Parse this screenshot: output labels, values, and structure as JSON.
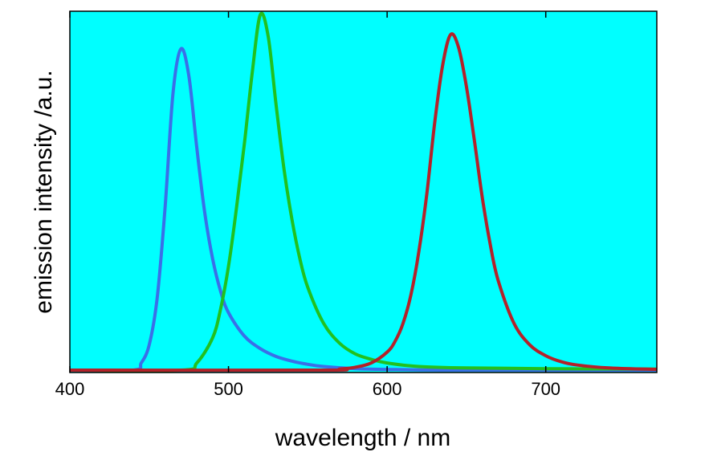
{
  "chart_data": {
    "type": "line",
    "xlabel": "wavelength / nm",
    "ylabel": "emission intensity /a.u.",
    "xlim": [
      400,
      770
    ],
    "ylim": [
      0,
      1.0
    ],
    "x_ticks": [
      400,
      500,
      600,
      700
    ],
    "x_tick_labels": [
      "400",
      "500",
      "600",
      "700"
    ],
    "background_color": "#00FFFF",
    "grid": false,
    "series": [
      {
        "color": "#3A6FE8",
        "x": [
          400,
          440,
          445,
          450,
          455,
          460,
          465,
          470,
          475,
          480,
          485,
          490,
          495,
          500,
          510,
          520,
          530,
          540,
          550,
          560,
          580,
          600,
          640,
          700,
          770
        ],
        "y": [
          0.0,
          0.0,
          0.02,
          0.07,
          0.2,
          0.45,
          0.77,
          0.895,
          0.82,
          0.62,
          0.44,
          0.31,
          0.22,
          0.16,
          0.095,
          0.06,
          0.038,
          0.025,
          0.016,
          0.01,
          0.004,
          0.002,
          0.0,
          0.0,
          0.0
        ]
      },
      {
        "color": "#22C01F",
        "x": [
          400,
          470,
          480,
          490,
          495,
          500,
          505,
          510,
          515,
          520,
          525,
          530,
          535,
          540,
          545,
          550,
          560,
          570,
          580,
          590,
          600,
          620,
          650,
          700,
          770
        ],
        "y": [
          0.0,
          0.0,
          0.02,
          0.09,
          0.17,
          0.29,
          0.45,
          0.63,
          0.83,
          0.99,
          0.93,
          0.74,
          0.56,
          0.42,
          0.31,
          0.23,
          0.13,
          0.075,
          0.045,
          0.03,
          0.02,
          0.01,
          0.006,
          0.004,
          0.003
        ]
      },
      {
        "color": "#B3222A",
        "x": [
          400,
          560,
          570,
          580,
          590,
          600,
          605,
          610,
          615,
          620,
          625,
          630,
          635,
          640,
          645,
          650,
          655,
          660,
          665,
          670,
          680,
          690,
          700,
          710,
          720,
          740,
          770
        ],
        "y": [
          0.0,
          0.0,
          0.003,
          0.008,
          0.02,
          0.05,
          0.08,
          0.13,
          0.21,
          0.33,
          0.49,
          0.69,
          0.85,
          0.935,
          0.9,
          0.79,
          0.64,
          0.48,
          0.35,
          0.25,
          0.13,
          0.07,
          0.04,
          0.023,
          0.014,
          0.006,
          0.002
        ]
      }
    ]
  }
}
